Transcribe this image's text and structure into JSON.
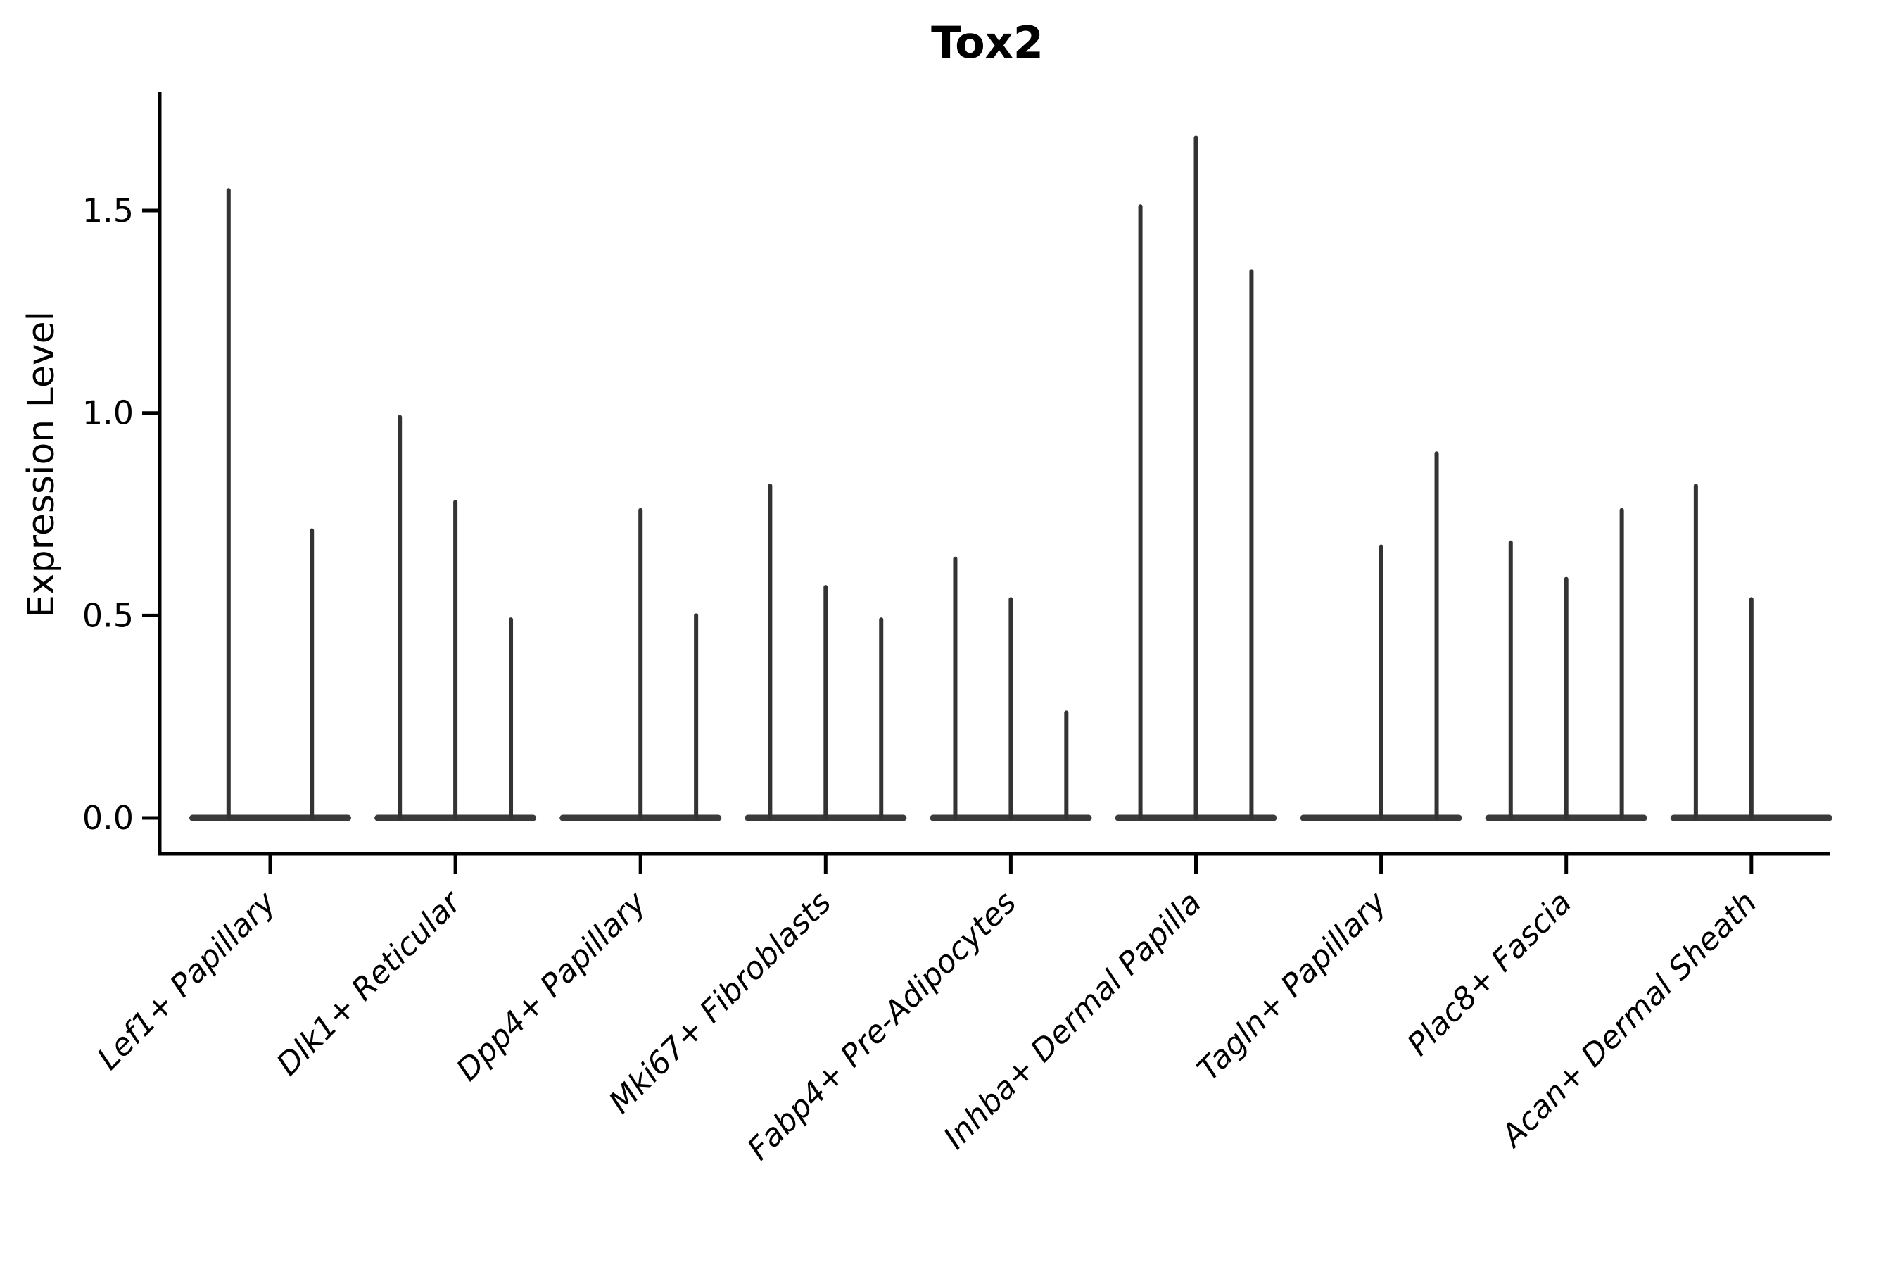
{
  "page": {
    "background": "#ffffff"
  },
  "chart_data": {
    "type": "violin",
    "title": "Tox2",
    "ylabel": "Expression Level",
    "xlabel": "",
    "ytick_labels": [
      "0.0",
      "0.5",
      "1.0",
      "1.5"
    ],
    "ytick_values": [
      0.0,
      0.5,
      1.0,
      1.5
    ],
    "ylim": [
      0,
      1.78
    ],
    "grid": false,
    "legend_position": "none",
    "colors": {
      "violin_stroke": "#333333",
      "baseline_fill": "#3a3a3a",
      "axis": "#000000",
      "text": "#000000"
    },
    "categories": [
      "Lef1+ Papillary",
      "Dlk1+ Reticular",
      "Dpp4+ Papillary",
      "Mki67+ Fibroblasts",
      "Fabp4+ Pre-Adipocytes",
      "Inhba+ Dermal Papilla",
      "Tagln+ Papillary",
      "Plac8+ Fascia",
      "Acan+ Dermal Sheath"
    ],
    "groups": [
      {
        "category": "Lef1+ Papillary",
        "violins": [
          {
            "offset": -0.225,
            "max": 1.55
          },
          {
            "offset": 0.225,
            "max": 0.71
          }
        ]
      },
      {
        "category": "Dlk1+ Reticular",
        "violins": [
          {
            "offset": -0.3,
            "max": 0.99
          },
          {
            "offset": 0.0,
            "max": 0.78
          },
          {
            "offset": 0.3,
            "max": 0.49
          }
        ]
      },
      {
        "category": "Dpp4+ Papillary",
        "violins": [
          {
            "offset": -0.3,
            "max": 0.0
          },
          {
            "offset": 0.0,
            "max": 0.76
          },
          {
            "offset": 0.3,
            "max": 0.5
          }
        ]
      },
      {
        "category": "Mki67+ Fibroblasts",
        "violins": [
          {
            "offset": -0.3,
            "max": 0.82
          },
          {
            "offset": 0.0,
            "max": 0.57
          },
          {
            "offset": 0.3,
            "max": 0.49
          }
        ]
      },
      {
        "category": "Fabp4+ Pre-Adipocytes",
        "violins": [
          {
            "offset": -0.3,
            "max": 0.64
          },
          {
            "offset": 0.0,
            "max": 0.54
          },
          {
            "offset": 0.3,
            "max": 0.26
          }
        ]
      },
      {
        "category": "Inhba+ Dermal Papilla",
        "violins": [
          {
            "offset": -0.3,
            "max": 1.51
          },
          {
            "offset": 0.0,
            "max": 1.68
          },
          {
            "offset": 0.3,
            "max": 1.35
          }
        ]
      },
      {
        "category": "Tagln+ Papillary",
        "violins": [
          {
            "offset": -0.3,
            "max": 0.0
          },
          {
            "offset": 0.0,
            "max": 0.67
          },
          {
            "offset": 0.3,
            "max": 0.9
          }
        ]
      },
      {
        "category": "Plac8+ Fascia",
        "violins": [
          {
            "offset": -0.3,
            "max": 0.68
          },
          {
            "offset": 0.0,
            "max": 0.59
          },
          {
            "offset": 0.3,
            "max": 0.76
          }
        ]
      },
      {
        "category": "Acan+ Dermal Sheath",
        "violins": [
          {
            "offset": -0.3,
            "max": 0.82
          },
          {
            "offset": 0.0,
            "max": 0.54
          },
          {
            "offset": 0.3,
            "max": 0.0
          }
        ]
      }
    ]
  }
}
